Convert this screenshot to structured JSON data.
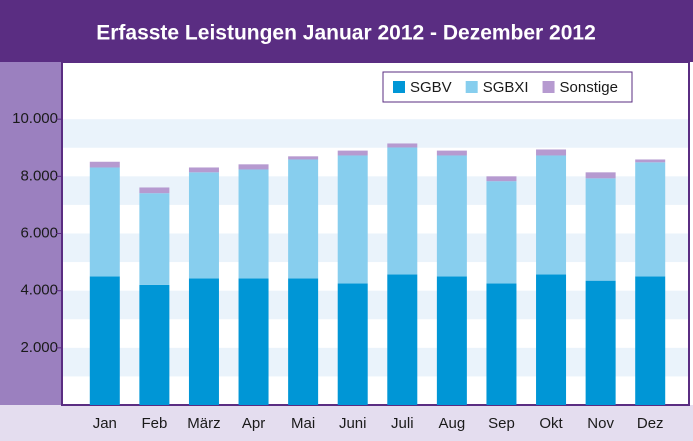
{
  "chart_data": {
    "type": "stacked_bar",
    "title": "Erfasste Leistungen Januar 2012 - Dezember 2012",
    "categories": [
      "Jan",
      "Feb",
      "März",
      "Apr",
      "Mai",
      "Juni",
      "Juli",
      "Aug",
      "Sep",
      "Okt",
      "Nov",
      "Dez"
    ],
    "series": [
      {
        "name": "SGBV",
        "color": "#0096d6",
        "values": [
          4500,
          4200,
          4430,
          4430,
          4430,
          4250,
          4570,
          4500,
          4250,
          4570,
          4350,
          4500
        ]
      },
      {
        "name": "SGBXI",
        "color": "#87ceee",
        "values": [
          3810,
          3210,
          3710,
          3810,
          4160,
          4480,
          4440,
          4230,
          3580,
          4160,
          3580,
          3990
        ]
      },
      {
        "name": "Sonstige",
        "color": "#b69ad0",
        "values": [
          200,
          200,
          170,
          180,
          110,
          170,
          140,
          170,
          170,
          210,
          210,
          100
        ]
      }
    ],
    "ylim": [
      0,
      12000
    ],
    "yticks": [
      {
        "value": 2000,
        "label": "2.000"
      },
      {
        "value": 4000,
        "label": "4.000"
      },
      {
        "value": 6000,
        "label": "6.000"
      },
      {
        "value": 8000,
        "label": "8.000"
      },
      {
        "value": 10000,
        "label": "10.000"
      }
    ],
    "legend": "top-right"
  }
}
